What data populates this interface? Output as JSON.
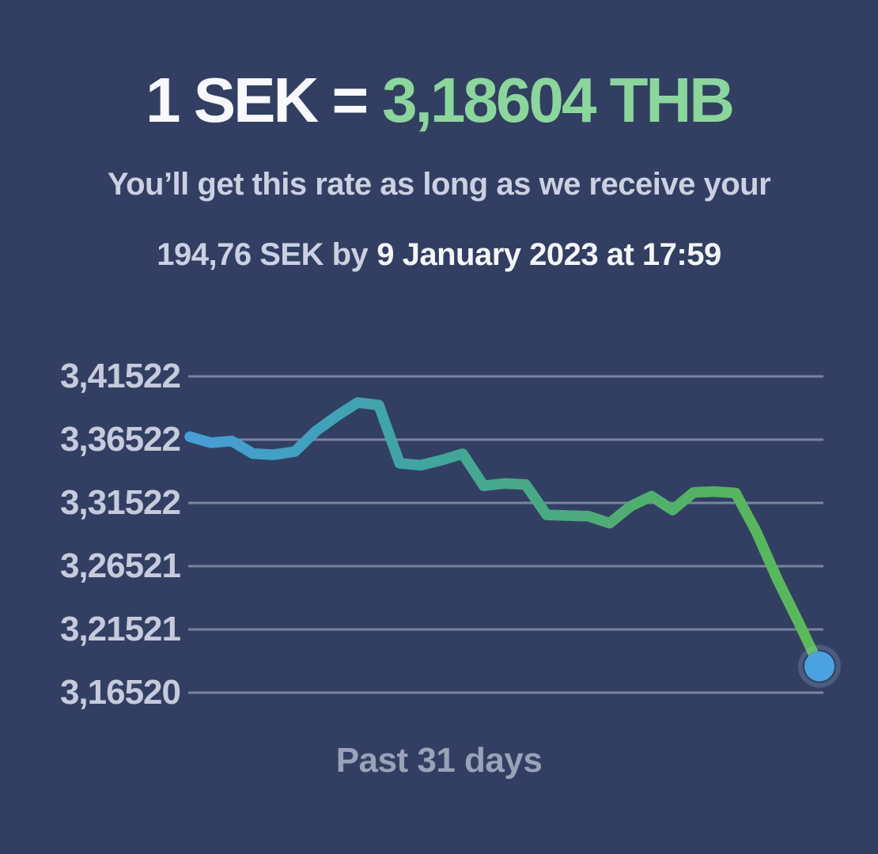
{
  "header": {
    "base": "1 SEK =",
    "quote": "3,18604 THB"
  },
  "guarantee": {
    "line1": "You’ll get this rate as long as we receive your",
    "line2_regular": "194,76 SEK by",
    "line2_bold": "9 January 2023 at 17:59"
  },
  "colors": {
    "background": "#323F62",
    "headline_white": "#F8F9FC",
    "rate_green": "#8BD79B",
    "subtitle_lavender": "#CBD1E2",
    "deadline_white": "#F4F6FA",
    "axis_label": "#C5CBDC",
    "x_label": "#9AA2B9",
    "gridline": "rgba(222,229,245,0.42)"
  },
  "chart_data": {
    "type": "line",
    "title": "",
    "xlabel": "Past 31 days",
    "ylabel": "",
    "x_unit": "days",
    "x_range_days": 31,
    "y_ticks": [
      "3,41522",
      "3,36522",
      "3,31522",
      "3,26521",
      "3,21521",
      "3,16520"
    ],
    "y_tick_values": [
      3.41522,
      3.36522,
      3.31522,
      3.26521,
      3.21521,
      3.1652
    ],
    "ylim": [
      3.1652,
      3.41522
    ],
    "grid": true,
    "legend": false,
    "series": [
      {
        "name": "SEK to THB rate, past 31 days",
        "values": [
          3.3675,
          3.3628,
          3.3641,
          3.3542,
          3.3533,
          3.3558,
          3.3719,
          3.3839,
          3.3945,
          3.3925,
          3.3465,
          3.345,
          3.3491,
          3.354,
          3.3288,
          3.3306,
          3.3297,
          3.3058,
          3.3052,
          3.3047,
          3.2992,
          3.3126,
          3.3205,
          3.3096,
          3.3235,
          3.3242,
          3.323,
          3.2921,
          3.2546,
          3.221,
          3.186
        ]
      }
    ],
    "line_gradient": [
      "#469ED8",
      "#3FA2BC",
      "#41A69A",
      "#4AAB7D",
      "#53B264",
      "#5CBA58"
    ],
    "end_marker": {
      "color": "#4BA2E0",
      "value": 3.18604
    }
  }
}
